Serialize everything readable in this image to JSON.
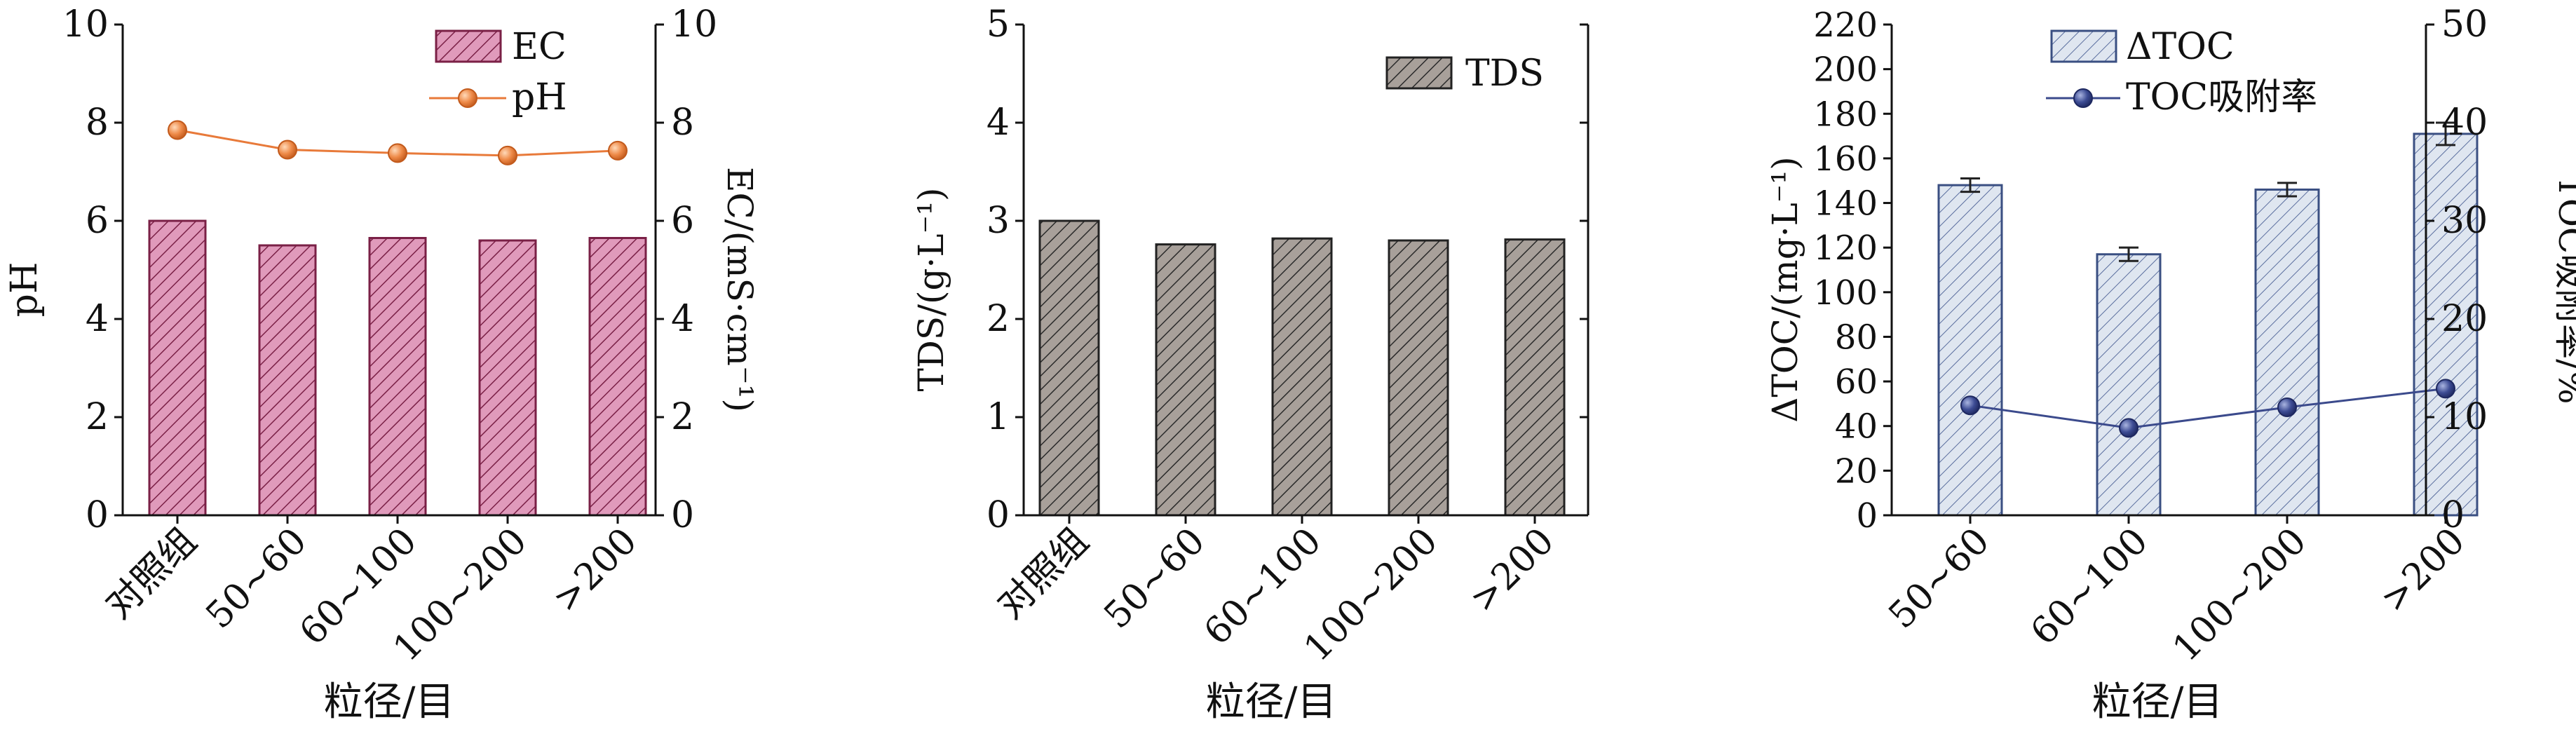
{
  "chart_data": [
    {
      "type": "bar",
      "categories": [
        "对照组",
        "50~60",
        "60~100",
        "100~200",
        ">200"
      ],
      "series": [
        {
          "name": "EC",
          "kind": "bar",
          "axis": "right",
          "values": [
            6.0,
            5.5,
            5.65,
            5.6,
            5.65
          ]
        },
        {
          "name": "pH",
          "kind": "line",
          "axis": "left",
          "values": [
            7.85,
            7.45,
            7.38,
            7.33,
            7.43
          ]
        }
      ],
      "xlabel": "粒径/目",
      "ylabel": "pH",
      "ylabel_right": "EC/(mS·cm⁻¹)",
      "ylim": [
        0,
        10
      ],
      "ylim_right": [
        0,
        10
      ],
      "yticks": [
        0,
        2,
        4,
        6,
        8,
        10
      ],
      "yticks_right": [
        0,
        2,
        4,
        6,
        8,
        10
      ],
      "legend_position": "top-right",
      "colors": {
        "bar_fill": "#e09abb",
        "bar_edge": "#7a2046",
        "line": "#e87a3a",
        "marker": "#e87a3a"
      }
    },
    {
      "type": "bar",
      "categories": [
        "对照组",
        "50~60",
        "60~100",
        "100~200",
        ">200"
      ],
      "series": [
        {
          "name": "TDS",
          "kind": "bar",
          "axis": "left",
          "values": [
            3.0,
            2.76,
            2.82,
            2.8,
            2.81
          ]
        }
      ],
      "xlabel": "粒径/目",
      "ylabel": "TDS/(g·L⁻¹)",
      "ylim": [
        0,
        5
      ],
      "yticks": [
        0,
        1,
        2,
        3,
        4,
        5
      ],
      "legend_position": "top-right",
      "colors": {
        "bar_fill": "#a8a09a",
        "bar_edge": "#222222"
      }
    },
    {
      "type": "bar",
      "categories": [
        "50~60",
        "60~100",
        "100~200",
        ">200"
      ],
      "series": [
        {
          "name": "ΔTOC",
          "kind": "bar",
          "axis": "left",
          "values": [
            148,
            117,
            146,
            171
          ],
          "errors": [
            3,
            3,
            3,
            5
          ]
        },
        {
          "name": "TOC吸附率",
          "kind": "line",
          "axis": "right",
          "values": [
            11.2,
            8.9,
            11.0,
            12.9
          ]
        }
      ],
      "xlabel": "粒径/目",
      "ylabel": "ΔTOC/(mg·L⁻¹)",
      "ylabel_right": "TOC吸附率/%",
      "ylim": [
        0,
        220
      ],
      "ylim_right": [
        0,
        50
      ],
      "yticks": [
        0,
        20,
        40,
        60,
        80,
        100,
        120,
        140,
        160,
        180,
        200,
        220
      ],
      "yticks_right": [
        0,
        10,
        20,
        30,
        40,
        50
      ],
      "legend_position": "top-left",
      "colors": {
        "bar_fill": "#dfe6f0",
        "bar_edge": "#3a4f82",
        "line": "#3b4a8c",
        "marker": "#3b4a8c"
      }
    }
  ]
}
